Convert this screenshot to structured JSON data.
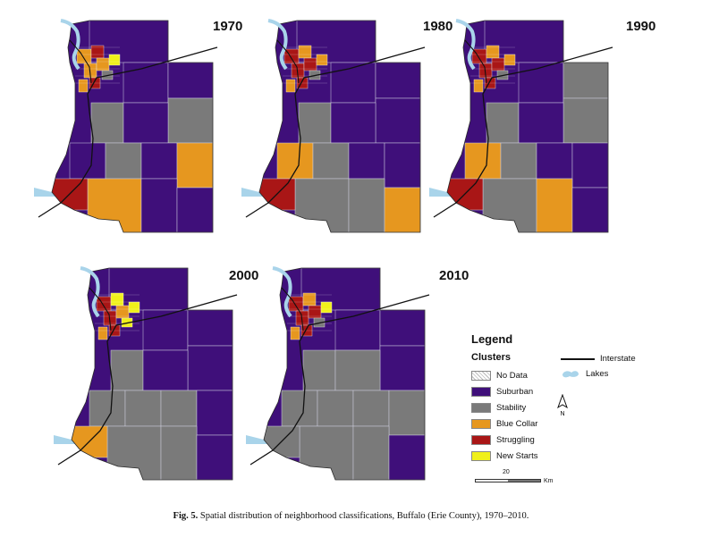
{
  "panels": [
    {
      "year": "1970"
    },
    {
      "year": "1980"
    },
    {
      "year": "1990"
    },
    {
      "year": "2000"
    },
    {
      "year": "2010"
    }
  ],
  "legend": {
    "title": "Legend",
    "subtitle": "Clusters",
    "items": [
      {
        "label": "No Data",
        "color": "#ffffff",
        "hatch": true
      },
      {
        "label": "Suburban",
        "color": "#3f0f7a"
      },
      {
        "label": "Stability",
        "color": "#7a7a7a"
      },
      {
        "label": "Blue Collar",
        "color": "#e6971f"
      },
      {
        "label": "Struggling",
        "color": "#a91616"
      },
      {
        "label": "New Starts",
        "color": "#f0f01a"
      }
    ],
    "interstate_label": "Interstate",
    "lakes_label": "Lakes",
    "lake_color": "#a9d4ea",
    "north_label": "N"
  },
  "scale_bar": {
    "value": "20",
    "unit": "Km"
  },
  "caption": {
    "label": "Fig. 5.",
    "text": "Spatial distribution of neighborhood classifications, Buffalo (Erie County), 1970–2010."
  }
}
